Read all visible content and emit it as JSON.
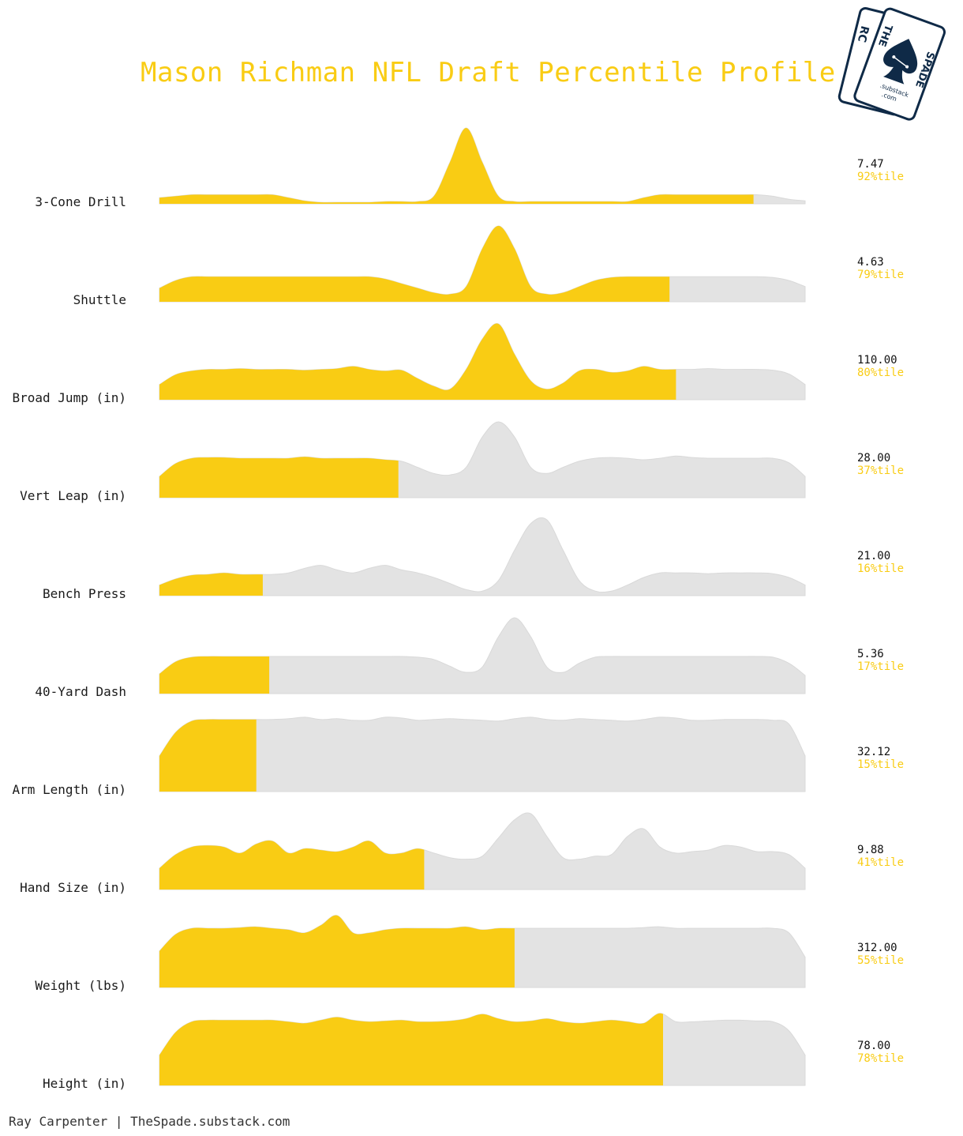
{
  "title": "Mason Richman NFL Draft Percentile Profile",
  "footer": "Ray Carpenter | TheSpade.substack.com",
  "logo": {
    "back_card_text": "RC",
    "front_card_text_left": "THE",
    "front_card_text_right": "SPADE",
    "substack_text": ".substack",
    "com_text": ".com"
  },
  "colors": {
    "accent": "#f9cc14",
    "background_ridge": "#e3e3e3",
    "logo_navy": "#0f2a47"
  },
  "chart_data": {
    "type": "ridgeline",
    "title": "Mason Richman NFL Draft Percentile Profile",
    "x_range": [
      0,
      100
    ],
    "series": [
      {
        "name": "3-Cone Drill",
        "value": "7.47",
        "percentile": 92,
        "percentile_label": "92%tile",
        "density": [
          0.08,
          0.1,
          0.12,
          0.12,
          0.12,
          0.12,
          0.12,
          0.12,
          0.08,
          0.04,
          0.02,
          0.02,
          0.02,
          0.02,
          0.03,
          0.03,
          0.03,
          0.1,
          0.55,
          1.0,
          0.55,
          0.1,
          0.03,
          0.03,
          0.03,
          0.03,
          0.03,
          0.03,
          0.03,
          0.03,
          0.08,
          0.12,
          0.12,
          0.12,
          0.12,
          0.12,
          0.12,
          0.12,
          0.1,
          0.06,
          0.04
        ]
      },
      {
        "name": "Shuttle",
        "value": "4.63",
        "percentile": 79,
        "percentile_label": "79%tile",
        "density": [
          0.18,
          0.28,
          0.33,
          0.33,
          0.33,
          0.33,
          0.33,
          0.33,
          0.33,
          0.33,
          0.33,
          0.33,
          0.33,
          0.33,
          0.3,
          0.24,
          0.18,
          0.12,
          0.1,
          0.2,
          0.7,
          1.0,
          0.7,
          0.2,
          0.1,
          0.12,
          0.2,
          0.28,
          0.32,
          0.33,
          0.33,
          0.33,
          0.33,
          0.33,
          0.33,
          0.33,
          0.33,
          0.33,
          0.32,
          0.28,
          0.2
        ]
      },
      {
        "name": "Broad Jump (in)",
        "value": "110.00",
        "percentile": 80,
        "percentile_label": "80%tile",
        "density": [
          0.2,
          0.33,
          0.38,
          0.4,
          0.4,
          0.41,
          0.4,
          0.4,
          0.4,
          0.39,
          0.4,
          0.41,
          0.44,
          0.4,
          0.38,
          0.39,
          0.28,
          0.18,
          0.14,
          0.4,
          0.8,
          1.0,
          0.6,
          0.25,
          0.14,
          0.22,
          0.38,
          0.4,
          0.36,
          0.38,
          0.44,
          0.4,
          0.4,
          0.4,
          0.41,
          0.4,
          0.4,
          0.4,
          0.39,
          0.34,
          0.2
        ]
      },
      {
        "name": "Vert Leap (in)",
        "value": "28.00",
        "percentile": 37,
        "percentile_label": "37%tile",
        "density": [
          0.28,
          0.45,
          0.52,
          0.53,
          0.53,
          0.52,
          0.52,
          0.52,
          0.52,
          0.54,
          0.52,
          0.52,
          0.52,
          0.52,
          0.5,
          0.48,
          0.4,
          0.32,
          0.3,
          0.4,
          0.8,
          1.0,
          0.8,
          0.4,
          0.32,
          0.4,
          0.48,
          0.52,
          0.53,
          0.52,
          0.5,
          0.52,
          0.55,
          0.53,
          0.52,
          0.52,
          0.52,
          0.52,
          0.52,
          0.46,
          0.28
        ]
      },
      {
        "name": "Bench Press",
        "value": "21.00",
        "percentile": 16,
        "percentile_label": "16%tile",
        "density": [
          0.14,
          0.22,
          0.27,
          0.28,
          0.3,
          0.28,
          0.28,
          0.28,
          0.3,
          0.36,
          0.4,
          0.34,
          0.3,
          0.36,
          0.4,
          0.34,
          0.3,
          0.24,
          0.16,
          0.08,
          0.06,
          0.2,
          0.6,
          0.95,
          1.0,
          0.6,
          0.2,
          0.06,
          0.06,
          0.14,
          0.24,
          0.3,
          0.3,
          0.3,
          0.29,
          0.3,
          0.3,
          0.3,
          0.29,
          0.24,
          0.14
        ]
      },
      {
        "name": "40-Yard Dash",
        "value": "5.36",
        "percentile": 17,
        "percentile_label": "17%tile",
        "density": [
          0.26,
          0.42,
          0.48,
          0.49,
          0.49,
          0.49,
          0.49,
          0.49,
          0.49,
          0.49,
          0.49,
          0.49,
          0.49,
          0.49,
          0.49,
          0.49,
          0.48,
          0.45,
          0.36,
          0.28,
          0.35,
          0.75,
          1.0,
          0.75,
          0.35,
          0.28,
          0.4,
          0.48,
          0.49,
          0.49,
          0.49,
          0.49,
          0.49,
          0.49,
          0.49,
          0.49,
          0.49,
          0.49,
          0.48,
          0.4,
          0.24
        ]
      },
      {
        "name": "Arm Length (in)",
        "value": "32.12",
        "percentile": 15,
        "percentile_label": "15%tile",
        "density": [
          0.47,
          0.78,
          0.93,
          0.95,
          0.95,
          0.95,
          0.95,
          0.95,
          0.96,
          0.98,
          0.95,
          0.96,
          0.94,
          0.94,
          0.98,
          0.97,
          0.94,
          0.95,
          0.96,
          0.95,
          0.94,
          0.93,
          0.96,
          0.98,
          0.95,
          0.94,
          0.96,
          0.95,
          0.94,
          0.93,
          0.95,
          0.98,
          0.97,
          0.94,
          0.94,
          0.95,
          0.95,
          0.95,
          0.94,
          0.89,
          0.47
        ]
      },
      {
        "name": "Hand Size (in)",
        "value": "9.88",
        "percentile": 41,
        "percentile_label": "41%tile",
        "density": [
          0.28,
          0.46,
          0.56,
          0.58,
          0.56,
          0.48,
          0.6,
          0.64,
          0.48,
          0.54,
          0.52,
          0.5,
          0.56,
          0.64,
          0.48,
          0.48,
          0.54,
          0.48,
          0.42,
          0.4,
          0.44,
          0.68,
          0.92,
          1.0,
          0.7,
          0.42,
          0.4,
          0.44,
          0.46,
          0.7,
          0.8,
          0.56,
          0.48,
          0.5,
          0.52,
          0.58,
          0.56,
          0.5,
          0.5,
          0.46,
          0.28
        ]
      },
      {
        "name": "Weight (lbs)",
        "value": "312.00",
        "percentile": 55,
        "percentile_label": "55%tile",
        "density": [
          0.48,
          0.7,
          0.78,
          0.78,
          0.78,
          0.79,
          0.8,
          0.78,
          0.76,
          0.72,
          0.82,
          0.95,
          0.72,
          0.72,
          0.76,
          0.78,
          0.78,
          0.78,
          0.78,
          0.8,
          0.76,
          0.78,
          0.78,
          0.78,
          0.78,
          0.78,
          0.78,
          0.78,
          0.78,
          0.78,
          0.79,
          0.8,
          0.78,
          0.78,
          0.78,
          0.78,
          0.78,
          0.78,
          0.78,
          0.72,
          0.4
        ]
      },
      {
        "name": "Height (in)",
        "value": "78.00",
        "percentile": 78,
        "percentile_label": "78%tile",
        "density": [
          0.4,
          0.7,
          0.84,
          0.86,
          0.86,
          0.86,
          0.86,
          0.86,
          0.84,
          0.82,
          0.86,
          0.9,
          0.86,
          0.84,
          0.85,
          0.86,
          0.84,
          0.84,
          0.85,
          0.88,
          0.94,
          0.88,
          0.84,
          0.85,
          0.88,
          0.84,
          0.82,
          0.84,
          0.86,
          0.84,
          0.82,
          0.95,
          0.84,
          0.84,
          0.85,
          0.86,
          0.86,
          0.85,
          0.84,
          0.72,
          0.4
        ]
      }
    ]
  }
}
